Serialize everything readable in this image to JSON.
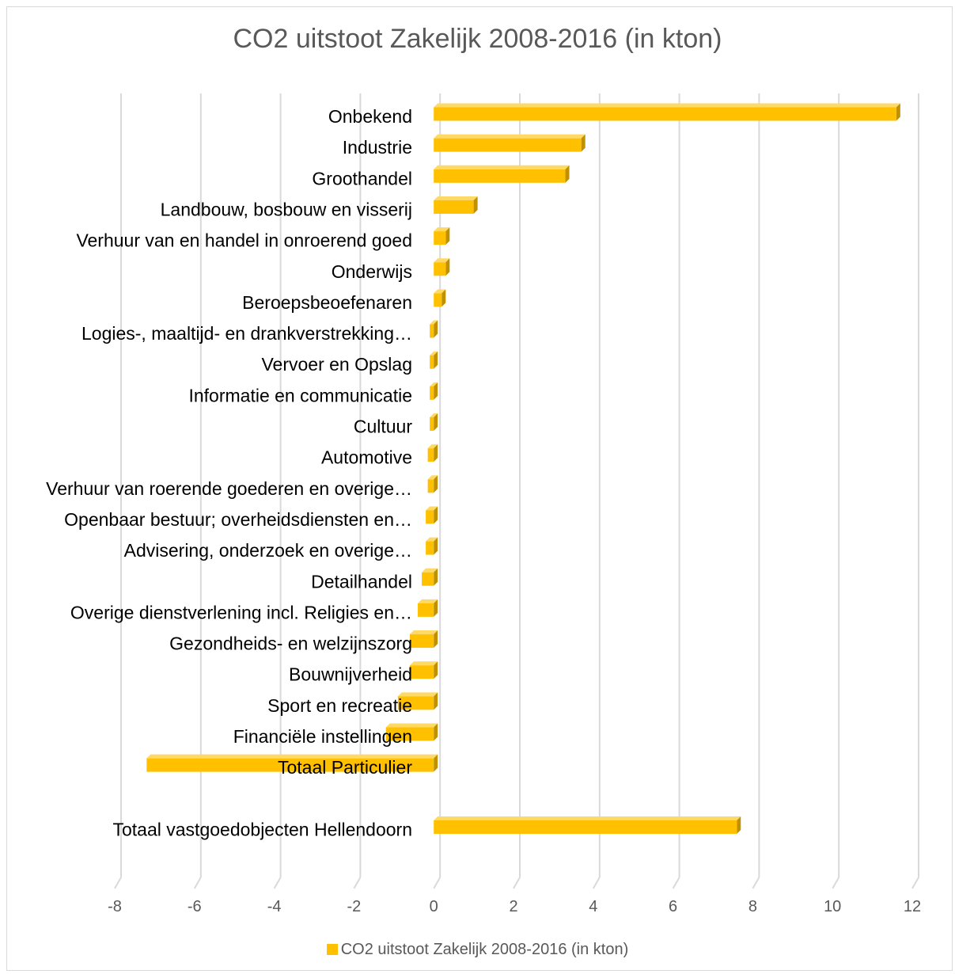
{
  "chart_data": {
    "type": "bar",
    "orientation": "horizontal",
    "title": "CO2 uitstoot Zakelijk 2008-2016 (in kton)",
    "series": [
      {
        "name": "CO2 uitstoot Zakelijk 2008-2016 (in kton)",
        "color": "#ffc000",
        "values": [
          11.6,
          3.7,
          3.3,
          1.0,
          0.3,
          0.3,
          0.2,
          -0.1,
          -0.1,
          -0.1,
          -0.1,
          -0.15,
          -0.15,
          -0.2,
          -0.2,
          -0.3,
          -0.4,
          -0.6,
          -0.6,
          -0.9,
          -1.2,
          -7.2,
          null,
          7.6
        ]
      }
    ],
    "categories": [
      "Onbekend",
      "Industrie",
      "Groothandel",
      "Landbouw, bosbouw en visserij",
      "Verhuur van en handel in onroerend goed",
      "Onderwijs",
      "Beroepsbeoefenaren",
      "Logies-, maaltijd- en drankverstrekking…",
      "Vervoer en Opslag",
      "Informatie en communicatie",
      "Cultuur",
      "Automotive",
      "Verhuur van roerende goederen en overige…",
      "Openbaar bestuur; overheidsdiensten en…",
      "Advisering, onderzoek en overige…",
      "Detailhandel",
      "Overige dienstverlening incl. Religies en…",
      "Gezondheids- en welzijnszorg",
      "Bouwnijverheid",
      "Sport en recreatie",
      "Financiële instellingen",
      "Totaal Particulier",
      "",
      "Totaal vastgoedobjecten Hellendoorn"
    ],
    "xlim": [
      -8,
      12
    ],
    "xticks": [
      -8,
      -6,
      -4,
      -2,
      0,
      2,
      4,
      6,
      8,
      10,
      12
    ],
    "xtick_labels": [
      "-8",
      "-6",
      "-4",
      "-2",
      "0",
      "2",
      "4",
      "6",
      "8",
      "10",
      "12"
    ],
    "grid": true,
    "legend_position": "bottom",
    "xlabel": "",
    "ylabel": ""
  }
}
